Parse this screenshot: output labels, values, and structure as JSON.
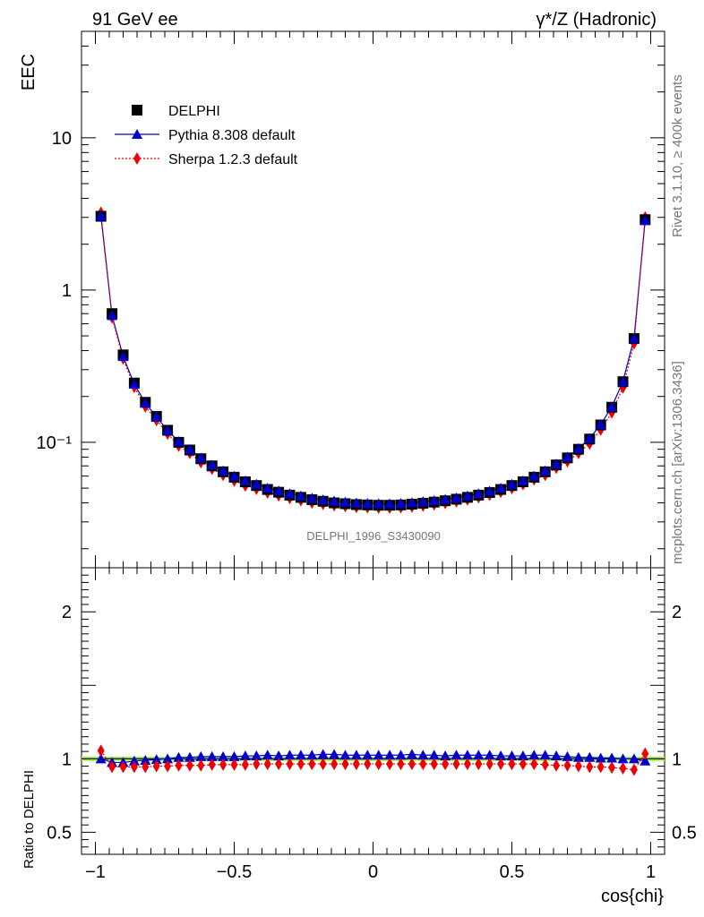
{
  "header": {
    "left": "91 GeV ee",
    "right": "γ*/Z (Hadronic)"
  },
  "side_labels": {
    "rivet": "Rivet 3.1.10, ≥ 400k events",
    "mcplots": "mcplots.cern.ch [arXiv:1306.3436]"
  },
  "watermark": "DELPHI_1996_S3430090",
  "colors": {
    "data": "#000000",
    "pythia": "#0000cc",
    "sherpa": "#ee0000",
    "band": "#aaee55"
  },
  "chart_data": [
    {
      "type": "line",
      "scale": "log",
      "ylabel": "EEC",
      "ylim": [
        0.015,
        50
      ],
      "yticks": [
        0.1,
        1,
        10
      ],
      "ytick_labels": [
        "10⁻¹",
        "1",
        "10"
      ],
      "xlim": [
        -1.05,
        1.05
      ],
      "legend": {
        "position": "top-left",
        "entries": [
          "DELPHI",
          "Pythia 8.308 default",
          "Sherpa 1.2.3 default"
        ]
      },
      "x": [
        -0.98,
        -0.94,
        -0.9,
        -0.86,
        -0.82,
        -0.78,
        -0.74,
        -0.7,
        -0.66,
        -0.62,
        -0.58,
        -0.54,
        -0.5,
        -0.46,
        -0.42,
        -0.38,
        -0.34,
        -0.3,
        -0.26,
        -0.22,
        -0.18,
        -0.14,
        -0.1,
        -0.06,
        -0.02,
        0.02,
        0.06,
        0.1,
        0.14,
        0.18,
        0.22,
        0.26,
        0.3,
        0.34,
        0.38,
        0.42,
        0.46,
        0.5,
        0.54,
        0.58,
        0.62,
        0.66,
        0.7,
        0.74,
        0.78,
        0.82,
        0.86,
        0.9,
        0.94,
        0.98
      ],
      "series": [
        {
          "name": "DELPHI",
          "marker": "square",
          "values": [
            3.05,
            0.7,
            0.375,
            0.245,
            0.183,
            0.148,
            0.12,
            0.1,
            0.089,
            0.078,
            0.07,
            0.064,
            0.059,
            0.055,
            0.052,
            0.049,
            0.047,
            0.045,
            0.0435,
            0.042,
            0.041,
            0.04,
            0.0395,
            0.039,
            0.0388,
            0.0386,
            0.0386,
            0.0388,
            0.0392,
            0.0398,
            0.0405,
            0.0413,
            0.0423,
            0.0435,
            0.045,
            0.0468,
            0.049,
            0.052,
            0.055,
            0.059,
            0.064,
            0.071,
            0.079,
            0.09,
            0.105,
            0.13,
            0.17,
            0.25,
            0.48,
            2.9
          ]
        },
        {
          "name": "Pythia 8.308 default",
          "marker": "triangle",
          "values": [
            3.06,
            0.68,
            0.366,
            0.241,
            0.181,
            0.147,
            0.12,
            0.101,
            0.09,
            0.079,
            0.071,
            0.065,
            0.06,
            0.056,
            0.053,
            0.05,
            0.048,
            0.046,
            0.0445,
            0.043,
            0.042,
            0.0412,
            0.0405,
            0.04,
            0.0397,
            0.0396,
            0.0395,
            0.0397,
            0.0402,
            0.0408,
            0.0414,
            0.0422,
            0.0432,
            0.0445,
            0.046,
            0.0478,
            0.05,
            0.053,
            0.056,
            0.06,
            0.065,
            0.072,
            0.08,
            0.091,
            0.106,
            0.131,
            0.171,
            0.251,
            0.481,
            2.86
          ]
        },
        {
          "name": "Sherpa 1.2.3 default",
          "marker": "diamond",
          "values": [
            3.22,
            0.66,
            0.354,
            0.231,
            0.172,
            0.14,
            0.114,
            0.095,
            0.085,
            0.074,
            0.067,
            0.061,
            0.056,
            0.052,
            0.0495,
            0.0467,
            0.0448,
            0.043,
            0.0416,
            0.0402,
            0.0394,
            0.0386,
            0.0381,
            0.0376,
            0.0374,
            0.0372,
            0.0372,
            0.0374,
            0.0378,
            0.0384,
            0.0391,
            0.0399,
            0.0409,
            0.0421,
            0.0435,
            0.0452,
            0.0473,
            0.05,
            0.053,
            0.057,
            0.061,
            0.068,
            0.075,
            0.085,
            0.098,
            0.121,
            0.157,
            0.229,
            0.446,
            3.0
          ]
        }
      ]
    },
    {
      "type": "line",
      "ylabel": "Ratio to DELPHI",
      "xlabel": "cos{chi}",
      "ylim": [
        0.35,
        2.3
      ],
      "yticks": [
        0.5,
        1,
        2
      ],
      "ytick_labels": [
        "0.5",
        "1",
        "2"
      ],
      "xlim": [
        -1.05,
        1.05
      ],
      "xticks": [
        -1,
        -0.5,
        0,
        0.5,
        1
      ],
      "xtick_labels": [
        "−1",
        "−0.5",
        "0",
        "0.5",
        "1"
      ],
      "band": [
        0.985,
        1.015
      ],
      "series": [
        {
          "name": "Pythia 8.308 default",
          "marker": "triangle",
          "values": [
            1.0,
            0.975,
            0.975,
            0.985,
            0.99,
            0.995,
            1.0,
            1.01,
            1.01,
            1.015,
            1.015,
            1.015,
            1.015,
            1.02,
            1.02,
            1.025,
            1.02,
            1.025,
            1.025,
            1.025,
            1.03,
            1.03,
            1.025,
            1.025,
            1.025,
            1.025,
            1.025,
            1.025,
            1.03,
            1.025,
            1.025,
            1.02,
            1.025,
            1.025,
            1.025,
            1.025,
            1.02,
            1.02,
            1.02,
            1.025,
            1.025,
            1.02,
            1.015,
            1.01,
            1.01,
            1.005,
            1.005,
            1.0,
            1.0,
            0.985
          ]
        },
        {
          "name": "Sherpa 1.2.3 default",
          "marker": "diamond",
          "values": [
            1.055,
            0.945,
            0.945,
            0.945,
            0.945,
            0.95,
            0.95,
            0.955,
            0.955,
            0.955,
            0.96,
            0.96,
            0.96,
            0.96,
            0.965,
            0.965,
            0.965,
            0.965,
            0.965,
            0.965,
            0.965,
            0.965,
            0.965,
            0.965,
            0.965,
            0.965,
            0.965,
            0.965,
            0.965,
            0.965,
            0.965,
            0.965,
            0.965,
            0.965,
            0.965,
            0.965,
            0.965,
            0.965,
            0.965,
            0.965,
            0.96,
            0.955,
            0.955,
            0.95,
            0.945,
            0.945,
            0.94,
            0.935,
            0.925,
            1.035
          ]
        }
      ]
    }
  ]
}
